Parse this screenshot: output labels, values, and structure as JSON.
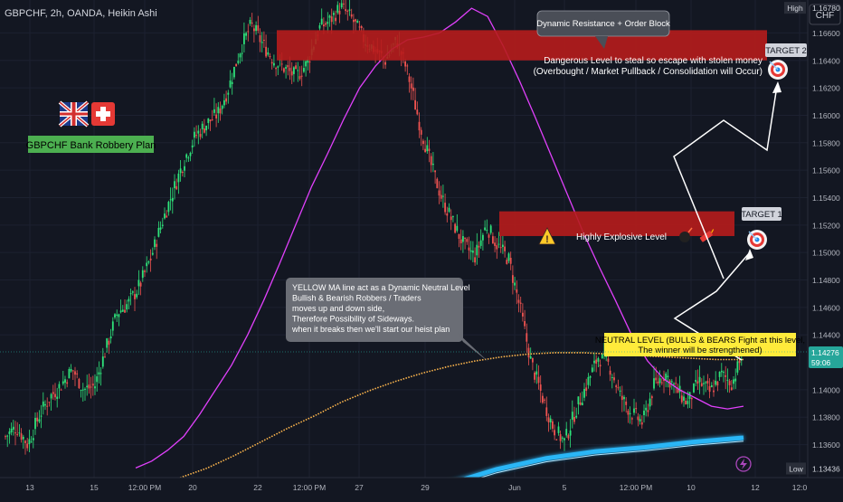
{
  "symbol_title": "GBPCHF, 2h, OANDA, Heikin Ashi",
  "currency": "CHF",
  "flags": {
    "left": "uk-flag-icon",
    "right": "swiss-flag-icon"
  },
  "plan_label": "GBPCHF Bank Robbery Plan",
  "colors": {
    "background": "#131722",
    "bull": "#26a69a",
    "bull_bright": "#2ee37a",
    "bear": "#ef5350",
    "red_zone": "#b71c1c",
    "magenta_ma": "#e040fb",
    "yellow_ma": "#ffb74d",
    "blue_band": "#29b6f6",
    "label_green": "#4caf50",
    "neutral_label": "#ffeb3b",
    "price_tag": "#26a69a"
  },
  "annotations": {
    "resistance_callout": "Dynamic Resistance + Order Block",
    "danger_line1": "Dangerous Level to steal so escape with stolen money",
    "danger_line2": "(Overbought / Market Pullback / Consolidation will Occur)",
    "explosive": "Highly Explosive Level",
    "target1": "TARGET 1",
    "target2": "TARGET 2",
    "neutral_line1": "NEUTRAL LEVEL (BULLS & BEARS Fight at this level,",
    "neutral_line2": "The winner will be strengthened)",
    "yellow_ma_note": [
      "YELLOW MA line act as a Dynamic Neutral Level",
      "Bullish & Bearish Robbers / Traders",
      "moves up and down side,",
      "Therefore Possibility of Sideways.",
      "when it breaks then we'll start our heist plan"
    ]
  },
  "price_axis": {
    "high_label": "High",
    "high_value": "1.16780",
    "low_label": "Low",
    "low_value": "1.13436",
    "last_price": "1.14276",
    "countdown": "59:06",
    "ticks": [
      "1.16600",
      "1.16400",
      "1.16200",
      "1.16000",
      "1.15800",
      "1.15600",
      "1.15400",
      "1.15200",
      "1.15000",
      "1.14800",
      "1.14600",
      "1.14400",
      "1.14000",
      "1.13800",
      "1.13600"
    ]
  },
  "time_axis": {
    "ticks": [
      "13",
      "15",
      "12:00 PM",
      "20",
      "22",
      "12:00 PM",
      "27",
      "29",
      "Jun",
      "5",
      "12:00 PM",
      "10",
      "12",
      "12:0"
    ]
  },
  "chart_data": {
    "type": "candlestick",
    "style": "Heikin Ashi",
    "symbol": "GBPCHF",
    "timeframe": "2h",
    "ylim": [
      1.1336,
      1.1684
    ],
    "zones": [
      {
        "name": "dangerous-level",
        "from": 1.164,
        "to": 1.1662
      },
      {
        "name": "highly-explosive-level",
        "from": 1.1512,
        "to": 1.153
      }
    ],
    "neutral_level": 1.1425,
    "targets": [
      {
        "name": "TARGET 1",
        "price": 1.152
      },
      {
        "name": "TARGET 2",
        "price": 1.1652
      }
    ],
    "projection_path": [
      1.1428,
      1.1462,
      1.1448,
      1.151,
      1.1587,
      1.1518,
      1.162,
      1.159,
      1.1648
    ],
    "price_path": [
      1.1366,
      1.1373,
      1.136,
      1.1381,
      1.1395,
      1.1404,
      1.1415,
      1.14,
      1.1403,
      1.143,
      1.1456,
      1.1463,
      1.1476,
      1.1496,
      1.1522,
      1.1545,
      1.1568,
      1.1585,
      1.1594,
      1.1601,
      1.1621,
      1.1648,
      1.1666,
      1.1652,
      1.164,
      1.1634,
      1.1628,
      1.1638,
      1.1663,
      1.1669,
      1.1679,
      1.167,
      1.1656,
      1.1648,
      1.164,
      1.1655,
      1.163,
      1.1595,
      1.1565,
      1.154,
      1.1522,
      1.1505,
      1.1497,
      1.152,
      1.1505,
      1.1495,
      1.146,
      1.142,
      1.1395,
      1.1372,
      1.1362,
      1.1385,
      1.1404,
      1.1424,
      1.1418,
      1.1395,
      1.1383,
      1.1376,
      1.1403,
      1.1412,
      1.14,
      1.139,
      1.1406,
      1.1398,
      1.1411,
      1.1405,
      1.1428
    ],
    "magenta_ma": [
      1.1343,
      1.1348,
      1.1356,
      1.1366,
      1.1382,
      1.14,
      1.1418,
      1.144,
      1.1465,
      1.1492,
      1.152,
      1.1548,
      1.1572,
      1.1597,
      1.162,
      1.1636,
      1.1648,
      1.1655,
      1.1657,
      1.166,
      1.1668,
      1.1678,
      1.1672,
      1.165,
      1.1625,
      1.1598,
      1.157,
      1.1542,
      1.1514,
      1.1489,
      1.1465,
      1.144,
      1.1421,
      1.1408,
      1.14,
      1.1394,
      1.1388,
      1.1386,
      1.1388
    ],
    "yellow_ma": [
      1.1331,
      1.1336,
      1.1343,
      1.1352,
      1.1362,
      1.1372,
      1.1381,
      1.1391,
      1.1399,
      1.1406,
      1.1412,
      1.1417,
      1.1421,
      1.1424,
      1.1426,
      1.1427,
      1.1427,
      1.1426,
      1.1425,
      1.1424,
      1.1423,
      1.1422,
      1.1422
    ],
    "blue_band": [
      1.1318,
      1.1331,
      1.1342,
      1.135,
      1.1355,
      1.1358,
      1.1362,
      1.1365
    ]
  }
}
